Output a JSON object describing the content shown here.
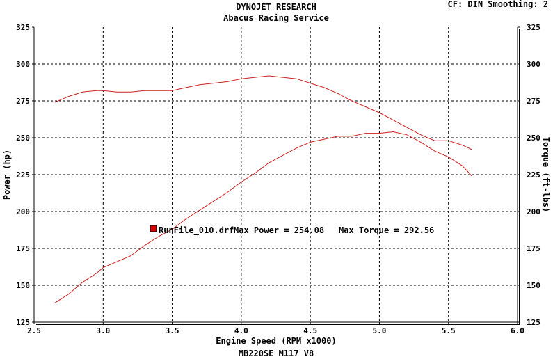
{
  "chart_data": {
    "type": "line",
    "title": "DYNOJET RESEARCH",
    "subtitle": "Abacus Racing Service",
    "header_right": "CF: DIN  Smoothing: 2",
    "footer": "MB220SE M117 V8",
    "xlabel": "Engine Speed (RPM x1000)",
    "ylabel_left": "Power (hp)",
    "ylabel_right": "Torque (ft-lbs)",
    "xlim": [
      2.5,
      6.0
    ],
    "ylim": [
      125,
      325
    ],
    "x_ticks": [
      "2.5",
      "3.0",
      "3.5",
      "4.0",
      "4.5",
      "5.0",
      "5.5",
      "6.0"
    ],
    "y_ticks": [
      "125",
      "150",
      "175",
      "200",
      "225",
      "250",
      "275",
      "300",
      "325"
    ],
    "grid": true,
    "annotation": {
      "run": "RunFile_010.drf",
      "max_power_label": "Max Power = 254.08",
      "max_torque_label": "Max Torque = 292.56",
      "color": "#d40000"
    },
    "series": [
      {
        "id": "power",
        "color": "#cc2020",
        "x": [
          2.65,
          2.75,
          2.85,
          2.95,
          3.0,
          3.1,
          3.2,
          3.3,
          3.4,
          3.5,
          3.6,
          3.7,
          3.8,
          3.9,
          4.0,
          4.1,
          4.2,
          4.3,
          4.4,
          4.5,
          4.6,
          4.7,
          4.8,
          4.9,
          5.0,
          5.1,
          5.2,
          5.3,
          5.4,
          5.5,
          5.6,
          5.67
        ],
        "values": [
          138,
          144,
          152,
          158,
          162,
          166,
          170,
          177,
          183,
          188,
          195,
          201,
          207,
          213,
          220,
          226,
          233,
          238,
          243,
          247,
          249,
          251,
          251,
          253,
          253,
          254,
          252,
          247,
          241,
          237,
          231,
          224
        ]
      },
      {
        "id": "torque",
        "color": "#cc2020",
        "x": [
          2.65,
          2.75,
          2.85,
          2.95,
          3.0,
          3.1,
          3.2,
          3.3,
          3.4,
          3.5,
          3.6,
          3.7,
          3.8,
          3.9,
          4.0,
          4.1,
          4.2,
          4.3,
          4.4,
          4.5,
          4.6,
          4.7,
          4.8,
          4.9,
          5.0,
          5.1,
          5.2,
          5.3,
          5.4,
          5.5,
          5.6,
          5.67
        ],
        "values": [
          274,
          278,
          281,
          282,
          282,
          281,
          281,
          282,
          282,
          282,
          284,
          286,
          287,
          288,
          290,
          291,
          292,
          291,
          290,
          287,
          284,
          280,
          275,
          271,
          267,
          262,
          257,
          252,
          248,
          248,
          245,
          242
        ]
      }
    ]
  }
}
